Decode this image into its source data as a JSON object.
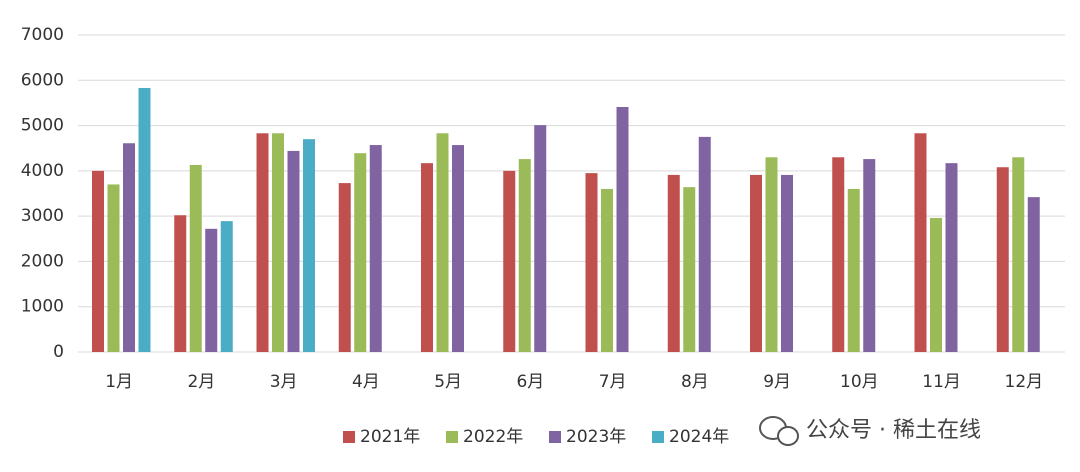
{
  "chart_data": {
    "type": "bar",
    "categories": [
      "1月",
      "2月",
      "3月",
      "4月",
      "5月",
      "6月",
      "7月",
      "8月",
      "9月",
      "10月",
      "11月",
      "12月"
    ],
    "series": [
      {
        "name": "2021年",
        "color": "#c0504d",
        "values": [
          4000,
          3020,
          4830,
          3730,
          4170,
          4000,
          3950,
          3910,
          3910,
          4300,
          4830,
          4080
        ]
      },
      {
        "name": "2022年",
        "color": "#9bbb59",
        "values": [
          3700,
          4130,
          4830,
          4390,
          4830,
          4260,
          3600,
          3640,
          4300,
          3600,
          2960,
          4300
        ]
      },
      {
        "name": "2023年",
        "color": "#8064a2",
        "values": [
          4610,
          2720,
          4440,
          4570,
          4570,
          5010,
          5410,
          4750,
          3910,
          4260,
          4170,
          3420
        ]
      },
      {
        "name": "2024年",
        "color": "#4bacc6",
        "values": [
          5830,
          2890,
          4700,
          null,
          null,
          null,
          null,
          null,
          null,
          null,
          null,
          null
        ]
      }
    ],
    "ylim": [
      0,
      7000
    ],
    "yticks": [
      0,
      1000,
      2000,
      3000,
      4000,
      5000,
      6000,
      7000
    ],
    "grid": true,
    "legend": "bottom"
  },
  "watermark": "公众号 · 稀土在线"
}
